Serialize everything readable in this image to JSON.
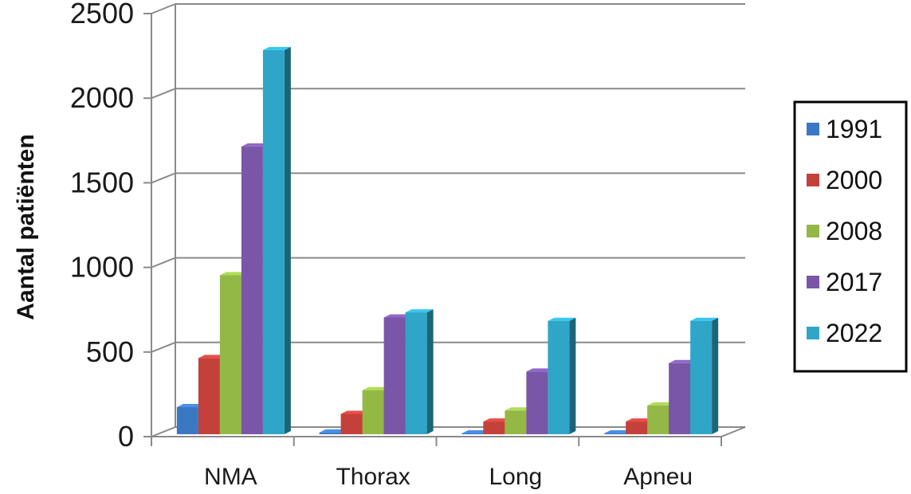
{
  "chart_data": {
    "type": "bar",
    "categories": [
      "NMA",
      "Thorax",
      "Long",
      "Apneu"
    ],
    "ylabel": "Aantal patiënten",
    "xlabel": "",
    "ylim": [
      0,
      2500
    ],
    "yticks": [
      0,
      500,
      1000,
      1500,
      2000,
      2500
    ],
    "grid": true,
    "legend_position": "right",
    "series": [
      {
        "name": "1991",
        "color": "#3b78c4",
        "values": [
          160,
          10,
          5,
          5
        ]
      },
      {
        "name": "2000",
        "color": "#c4403a",
        "values": [
          450,
          120,
          75,
          75
        ]
      },
      {
        "name": "2008",
        "color": "#93b845",
        "values": [
          940,
          260,
          140,
          170
        ]
      },
      {
        "name": "2017",
        "color": "#7a56a8",
        "values": [
          1700,
          690,
          370,
          420
        ]
      },
      {
        "name": "2022",
        "color": "#2fa6c8",
        "values": [
          2270,
          720,
          670,
          670
        ]
      }
    ]
  }
}
